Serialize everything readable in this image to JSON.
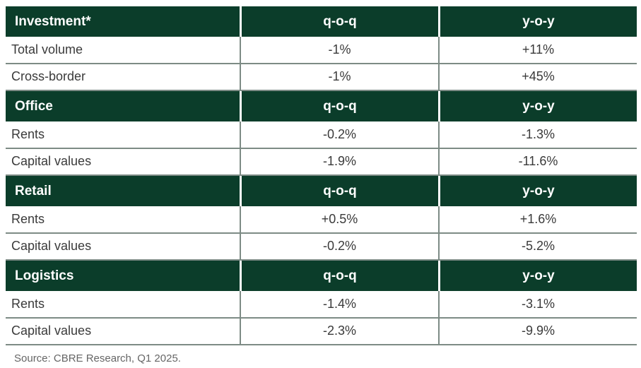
{
  "sections": [
    {
      "title": "Investment*",
      "col_qoq": "q-o-q",
      "col_yoy": "y-o-y",
      "rows": [
        {
          "label": "Total volume",
          "qoq": "-1%",
          "yoy": "+11%"
        },
        {
          "label": "Cross-border",
          "qoq": "-1%",
          "yoy": "+45%"
        }
      ]
    },
    {
      "title": "Office",
      "col_qoq": "q-o-q",
      "col_yoy": "y-o-y",
      "rows": [
        {
          "label": "Rents",
          "qoq": "-0.2%",
          "yoy": "-1.3%"
        },
        {
          "label": "Capital values",
          "qoq": "-1.9%",
          "yoy": "-11.6%"
        }
      ]
    },
    {
      "title": "Retail",
      "col_qoq": "q-o-q",
      "col_yoy": "y-o-y",
      "rows": [
        {
          "label": "Rents",
          "qoq": "+0.5%",
          "yoy": "+1.6%"
        },
        {
          "label": "Capital values",
          "qoq": "-0.2%",
          "yoy": "-5.2%"
        }
      ]
    },
    {
      "title": "Logistics",
      "col_qoq": "q-o-q",
      "col_yoy": "y-o-y",
      "rows": [
        {
          "label": "Rents",
          "qoq": "-1.4%",
          "yoy": "-3.1%"
        },
        {
          "label": "Capital values",
          "qoq": "-2.3%",
          "yoy": "-9.9%"
        }
      ]
    }
  ],
  "source": "Source: CBRE Research, Q1 2025.",
  "colors": {
    "header_bg": "#0b3d2a",
    "header_text": "#ffffff",
    "grid_line": "#7d8b85"
  }
}
